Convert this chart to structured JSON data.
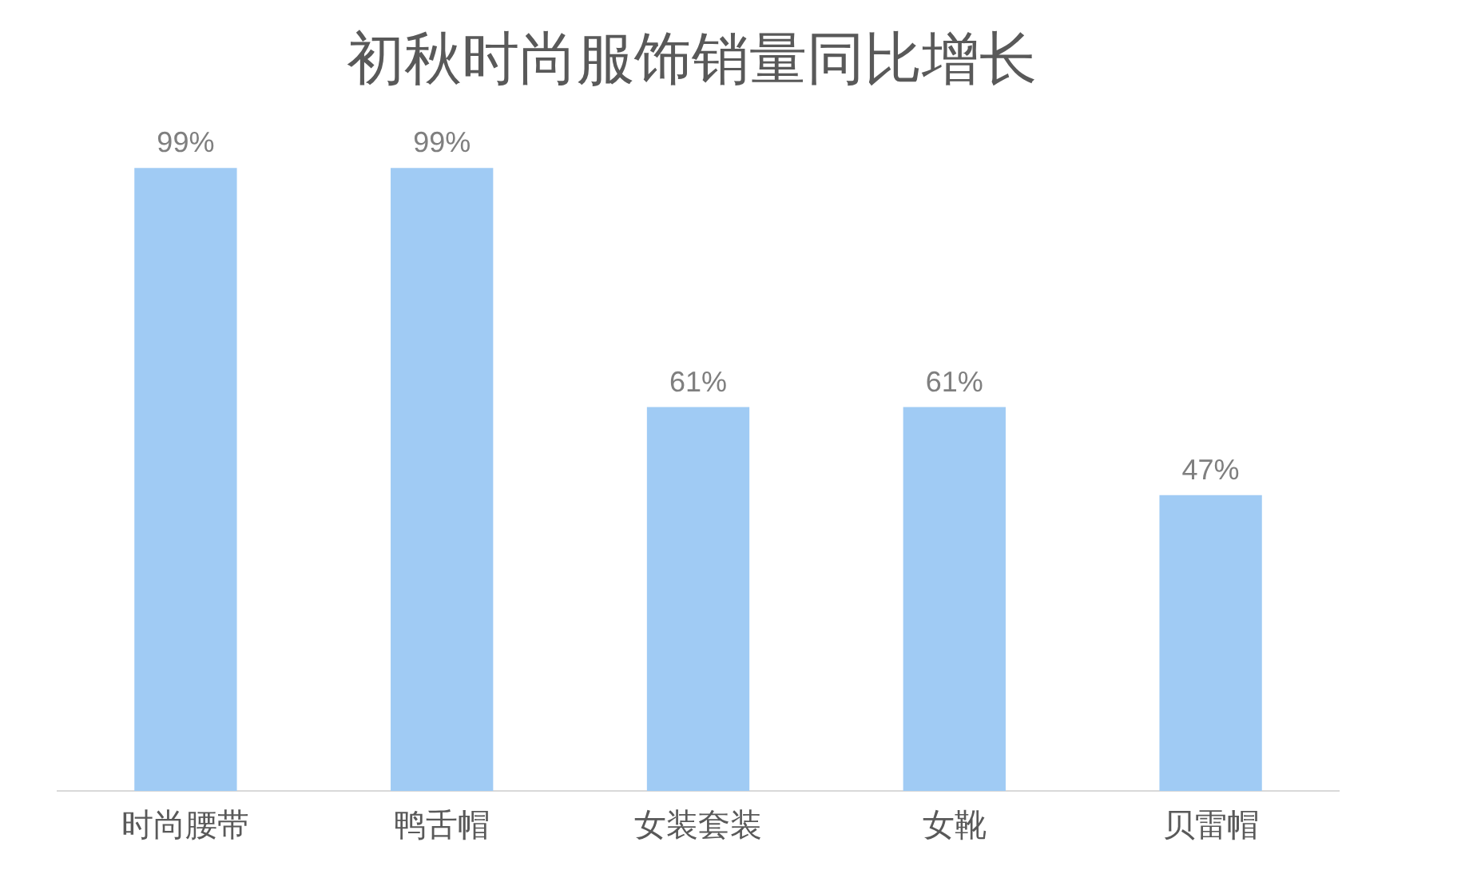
{
  "chart_data": {
    "type": "bar",
    "title": "初秋时尚服饰销量同比增长",
    "categories": [
      "时尚腰带",
      "鸭舌帽",
      "女装套装",
      "女靴",
      "贝雷帽"
    ],
    "values": [
      99,
      99,
      61,
      61,
      47
    ],
    "value_labels": [
      "99%",
      "99%",
      "61%",
      "61%",
      "47%"
    ],
    "color": "#a0cbf4",
    "legend": false
  }
}
